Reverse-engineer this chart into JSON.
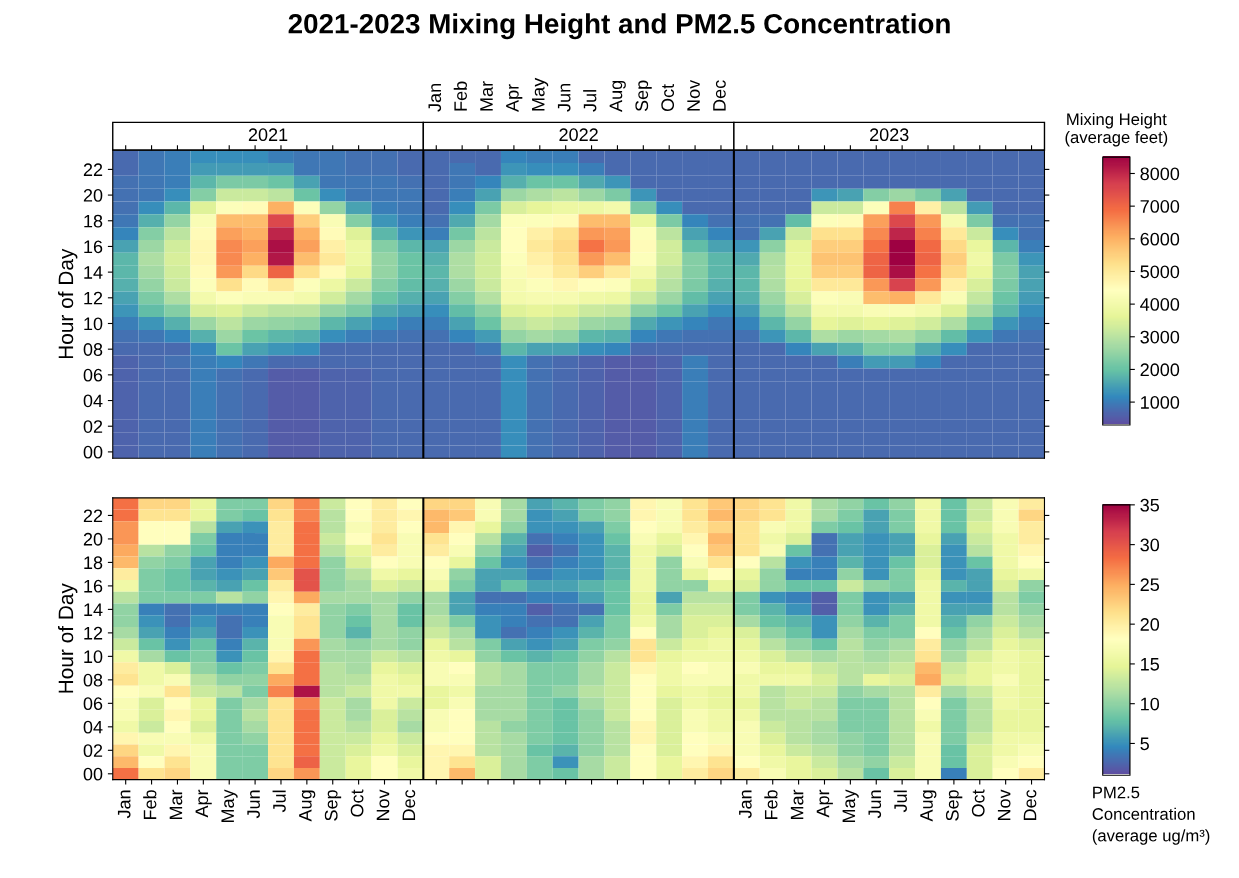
{
  "chart_data": [
    {
      "type": "heatmap",
      "title": "2021-2023 Mixing Height and PM2.5 Concentration",
      "annotations": [
        "2021",
        "2022",
        "2023"
      ],
      "ylabel": "Hour of Day",
      "clim": [
        300,
        8500
      ],
      "cticks": [
        1000,
        2000,
        3000,
        4000,
        5000,
        6000,
        7000,
        8000
      ],
      "clabel": "Mixing Height\n(average feet)",
      "categories": [
        null,
        null,
        null,
        null,
        null,
        null,
        null,
        null,
        null,
        null,
        null,
        null,
        "Jan",
        "Feb",
        "Mar",
        "Apr",
        "May",
        "Jun",
        "Jul",
        "Aug",
        "Sep",
        "Oct",
        "Nov",
        "Dec",
        null,
        null,
        null,
        null,
        null,
        null,
        null,
        null,
        null,
        null,
        null,
        null
      ],
      "y_categories": [
        null,
        "22",
        null,
        "20",
        null,
        "18",
        null,
        "16",
        null,
        "14",
        null,
        "12",
        null,
        "10",
        null,
        "08",
        null,
        "06",
        null,
        "04",
        null,
        "02",
        null,
        "00"
      ],
      "cells": [
        [
          700,
          900,
          1000,
          1200,
          1200,
          1200,
          1000,
          900,
          900,
          800,
          800,
          700,
          700,
          700,
          700,
          1100,
          1000,
          1000,
          700,
          700,
          700,
          700,
          700,
          700,
          700,
          700,
          700,
          700,
          700,
          700,
          700,
          700,
          700,
          700,
          700,
          700
        ],
        [
          700,
          900,
          1000,
          1400,
          1400,
          1400,
          1400,
          900,
          900,
          800,
          800,
          700,
          700,
          900,
          700,
          1300,
          1200,
          1200,
          1000,
          700,
          700,
          700,
          700,
          700,
          700,
          700,
          700,
          700,
          700,
          700,
          700,
          700,
          700,
          700,
          700,
          700
        ],
        [
          800,
          900,
          1000,
          1800,
          2200,
          2200,
          2000,
          1500,
          900,
          900,
          900,
          800,
          700,
          900,
          1100,
          1700,
          2000,
          2000,
          1600,
          1300,
          700,
          700,
          700,
          700,
          700,
          700,
          700,
          700,
          700,
          700,
          700,
          700,
          700,
          700,
          700,
          700
        ],
        [
          800,
          900,
          1200,
          2300,
          3200,
          3200,
          3000,
          2000,
          1200,
          900,
          900,
          900,
          700,
          1000,
          1500,
          2600,
          2800,
          3000,
          2600,
          2200,
          1300,
          700,
          700,
          700,
          700,
          700,
          700,
          1300,
          1500,
          2300,
          2600,
          2200,
          1500,
          700,
          700,
          700
        ],
        [
          800,
          1200,
          1800,
          3500,
          4300,
          4500,
          6000,
          4300,
          2500,
          1500,
          1000,
          900,
          700,
          1200,
          2200,
          3400,
          3600,
          3800,
          3800,
          4000,
          2200,
          1200,
          700,
          700,
          700,
          700,
          700,
          3200,
          3200,
          4300,
          6600,
          4800,
          3000,
          1400,
          700,
          700
        ],
        [
          900,
          1700,
          2500,
          4200,
          5800,
          5800,
          7500,
          5500,
          4200,
          2300,
          1300,
          1000,
          800,
          1600,
          2700,
          4300,
          4300,
          4500,
          5800,
          5800,
          3700,
          2200,
          1100,
          800,
          800,
          800,
          1900,
          4300,
          4500,
          6200,
          7500,
          6300,
          4100,
          2200,
          800,
          800
        ],
        [
          1100,
          2300,
          3000,
          4500,
          6200,
          6000,
          8000,
          6000,
          4500,
          3500,
          1800,
          1300,
          1000,
          2100,
          3000,
          4400,
          4800,
          5200,
          6300,
          6200,
          4300,
          3000,
          1500,
          1100,
          800,
          1500,
          3200,
          5200,
          5200,
          6500,
          8000,
          6600,
          5000,
          3200,
          1200,
          800
        ],
        [
          1500,
          2600,
          3300,
          4600,
          6500,
          6200,
          8300,
          6200,
          4800,
          3800,
          2300,
          1800,
          1500,
          2600,
          3200,
          4400,
          5000,
          5300,
          6800,
          6300,
          4500,
          3300,
          1900,
          1500,
          1300,
          2400,
          3600,
          5500,
          5500,
          6800,
          8500,
          6900,
          5300,
          3700,
          1800,
          1000
        ],
        [
          1800,
          2800,
          3400,
          4600,
          6500,
          6000,
          8200,
          5800,
          5000,
          3800,
          2500,
          2000,
          1700,
          2800,
          3300,
          4300,
          4800,
          5200,
          6300,
          5800,
          4300,
          3300,
          2300,
          1800,
          1600,
          2800,
          3700,
          5700,
          5700,
          7000,
          8500,
          7000,
          5500,
          3900,
          2200,
          1300
        ],
        [
          1800,
          2700,
          3300,
          4500,
          6300,
          5300,
          7000,
          5200,
          4500,
          3600,
          2500,
          2000,
          1800,
          2800,
          3300,
          4200,
          4600,
          5000,
          5500,
          5000,
          4000,
          3100,
          2300,
          1800,
          1800,
          2900,
          3700,
          5500,
          5500,
          7000,
          8300,
          6800,
          5300,
          3700,
          2300,
          1500
        ],
        [
          1700,
          2500,
          3200,
          4300,
          5200,
          4500,
          5000,
          4300,
          3800,
          3200,
          2300,
          1900,
          1700,
          2600,
          3200,
          4100,
          4300,
          4600,
          4400,
          4300,
          3600,
          2900,
          2200,
          1700,
          1800,
          2800,
          3600,
          5000,
          5000,
          6300,
          7600,
          6300,
          4800,
          3400,
          2200,
          1500
        ],
        [
          1500,
          2200,
          2800,
          4000,
          4300,
          4200,
          4200,
          4000,
          3300,
          2700,
          2000,
          1700,
          1500,
          2300,
          2900,
          4000,
          4100,
          4100,
          3900,
          3800,
          3200,
          2600,
          1900,
          1500,
          1700,
          2600,
          3400,
          4300,
          4200,
          5800,
          6000,
          5000,
          4200,
          3100,
          2000,
          1400
        ],
        [
          1300,
          1900,
          2300,
          3400,
          3500,
          3200,
          3000,
          3000,
          2500,
          2200,
          1600,
          1400,
          1200,
          1900,
          2400,
          3500,
          3600,
          3500,
          3200,
          3100,
          2400,
          2000,
          1500,
          1200,
          1400,
          2300,
          3000,
          4000,
          4000,
          4200,
          4200,
          4000,
          3500,
          2700,
          1800,
          1200
        ],
        [
          1000,
          1300,
          1700,
          2600,
          3000,
          2600,
          2500,
          2400,
          1800,
          1500,
          1200,
          1000,
          1000,
          1500,
          2000,
          3000,
          3200,
          3000,
          2600,
          2500,
          1600,
          1300,
          1100,
          900,
          1100,
          1800,
          2500,
          3600,
          3500,
          3600,
          3500,
          3300,
          2800,
          2000,
          1300,
          1000
        ],
        [
          800,
          900,
          1100,
          1700,
          2600,
          2000,
          1800,
          1700,
          1200,
          1000,
          900,
          800,
          800,
          1100,
          1400,
          2500,
          2700,
          2500,
          1800,
          1700,
          1100,
          900,
          800,
          800,
          800,
          1300,
          1800,
          2800,
          2600,
          2700,
          2800,
          2500,
          1900,
          1300,
          900,
          800
        ],
        [
          700,
          700,
          700,
          1100,
          2000,
          1500,
          1300,
          1200,
          700,
          700,
          700,
          700,
          700,
          700,
          900,
          1800,
          1500,
          1500,
          1200,
          1100,
          700,
          700,
          700,
          700,
          700,
          700,
          1100,
          1500,
          1700,
          2200,
          2200,
          1600,
          1200,
          700,
          700,
          700
        ],
        [
          600,
          700,
          800,
          1000,
          1100,
          900,
          700,
          700,
          700,
          700,
          700,
          700,
          700,
          700,
          700,
          1200,
          800,
          700,
          600,
          500,
          500,
          600,
          1000,
          700,
          700,
          700,
          700,
          700,
          1000,
          1400,
          1400,
          1100,
          700,
          700,
          700,
          700
        ],
        [
          600,
          700,
          700,
          1000,
          800,
          700,
          500,
          500,
          600,
          600,
          700,
          700,
          700,
          700,
          700,
          1200,
          800,
          700,
          600,
          500,
          500,
          600,
          1000,
          700,
          700,
          700,
          700,
          700,
          700,
          700,
          700,
          700,
          700,
          700,
          700,
          700
        ],
        [
          600,
          700,
          700,
          1000,
          800,
          700,
          500,
          500,
          600,
          600,
          700,
          700,
          700,
          700,
          700,
          1200,
          800,
          700,
          600,
          500,
          500,
          600,
          1000,
          700,
          700,
          700,
          700,
          700,
          700,
          700,
          700,
          700,
          700,
          700,
          700,
          700
        ],
        [
          600,
          700,
          700,
          1000,
          800,
          700,
          500,
          500,
          600,
          600,
          700,
          700,
          700,
          700,
          700,
          1200,
          800,
          700,
          600,
          500,
          500,
          600,
          1000,
          700,
          700,
          700,
          700,
          700,
          700,
          700,
          700,
          700,
          700,
          700,
          700,
          700
        ],
        [
          600,
          700,
          700,
          1000,
          800,
          700,
          500,
          500,
          600,
          600,
          700,
          700,
          700,
          700,
          700,
          1200,
          800,
          700,
          600,
          500,
          500,
          600,
          1000,
          700,
          700,
          700,
          700,
          700,
          700,
          700,
          700,
          700,
          700,
          700,
          700,
          700
        ],
        [
          600,
          700,
          700,
          1000,
          800,
          700,
          500,
          500,
          600,
          600,
          700,
          700,
          700,
          700,
          700,
          1200,
          800,
          700,
          600,
          500,
          500,
          600,
          1000,
          700,
          700,
          700,
          700,
          700,
          700,
          700,
          700,
          700,
          700,
          700,
          700,
          700
        ],
        [
          600,
          700,
          700,
          1000,
          800,
          700,
          500,
          500,
          600,
          600,
          700,
          700,
          700,
          700,
          700,
          1200,
          800,
          700,
          600,
          500,
          500,
          600,
          1000,
          700,
          700,
          700,
          700,
          700,
          700,
          700,
          700,
          700,
          700,
          700,
          700,
          700
        ],
        [
          600,
          700,
          700,
          1000,
          800,
          700,
          500,
          500,
          600,
          600,
          700,
          700,
          700,
          700,
          700,
          1200,
          800,
          700,
          600,
          500,
          500,
          600,
          1000,
          700,
          700,
          700,
          700,
          700,
          700,
          700,
          700,
          700,
          700,
          700,
          700,
          700
        ]
      ]
    },
    {
      "type": "heatmap",
      "ylabel": "Hour of Day",
      "clim": [
        1,
        35
      ],
      "cticks": [
        5,
        10,
        15,
        20,
        25,
        30,
        35
      ],
      "clabel": "PM2.5\nConcentration\n(average ug/m³)",
      "categories": [
        "Jan",
        "Feb",
        "Mar",
        "Apr",
        "May",
        "Jun",
        "Jul",
        "Aug",
        "Sep",
        "Oct",
        "Nov",
        "Dec",
        null,
        null,
        null,
        null,
        null,
        null,
        null,
        null,
        null,
        null,
        null,
        null,
        "Jan",
        "Feb",
        "Mar",
        "Apr",
        "May",
        "Jun",
        "Jul",
        "Aug",
        "Sep",
        "Oct",
        "Nov",
        "Dec"
      ],
      "y_categories": [
        null,
        "22",
        null,
        "20",
        null,
        "18",
        null,
        "16",
        null,
        "14",
        null,
        "12",
        null,
        "10",
        null,
        "08",
        null,
        "06",
        null,
        "04",
        null,
        "02",
        null,
        "00"
      ],
      "cells": [
        [
          28,
          22,
          22,
          15,
          9,
          9,
          22,
          27,
          13,
          18,
          20,
          18,
          22,
          22,
          17,
          11,
          6,
          7,
          9,
          10,
          19,
          17,
          21,
          23,
          22,
          21,
          16,
          11,
          10,
          8,
          10,
          16,
          8,
          13,
          17,
          20
        ],
        [
          28,
          21,
          21,
          15,
          9,
          8,
          21,
          27,
          12,
          18,
          20,
          19,
          24,
          23,
          17,
          11,
          5,
          6,
          9,
          10,
          19,
          17,
          21,
          24,
          22,
          21,
          16,
          11,
          9,
          6,
          9,
          16,
          8,
          13,
          17,
          22
        ],
        [
          26,
          18,
          18,
          12,
          6,
          5,
          20,
          28,
          12,
          17,
          20,
          18,
          24,
          19,
          15,
          10,
          5,
          5,
          6,
          9,
          18,
          17,
          20,
          22,
          21,
          17,
          16,
          9,
          8,
          6,
          9,
          16,
          8,
          14,
          17,
          20
        ],
        [
          26,
          18,
          18,
          9,
          4,
          4,
          20,
          28,
          13,
          18,
          21,
          17,
          21,
          18,
          12,
          7,
          3,
          4,
          5,
          8,
          17,
          15,
          19,
          24,
          21,
          16,
          14,
          3,
          6,
          5,
          6,
          15,
          6,
          13,
          16,
          20
        ],
        [
          25,
          12,
          10,
          8,
          4,
          4,
          20,
          28,
          12,
          15,
          20,
          17,
          20,
          17,
          10,
          6,
          2,
          3,
          5,
          7,
          16,
          14,
          18,
          23,
          21,
          17,
          8,
          3,
          6,
          5,
          6,
          14,
          5,
          12,
          16,
          19
        ],
        [
          24,
          10,
          9,
          6,
          4,
          5,
          25,
          28,
          10,
          14,
          18,
          17,
          18,
          15,
          8,
          5,
          3,
          4,
          5,
          7,
          16,
          10,
          17,
          21,
          18,
          12,
          5,
          4,
          7,
          5,
          8,
          14,
          5,
          8,
          16,
          18
        ],
        [
          20,
          9,
          8,
          6,
          5,
          6,
          23,
          30,
          10,
          12,
          16,
          15,
          17,
          10,
          6,
          6,
          4,
          5,
          5,
          7,
          16,
          10,
          15,
          18,
          15,
          10,
          4,
          4,
          10,
          5,
          9,
          15,
          5,
          6,
          15,
          16
        ],
        [
          16,
          9,
          8,
          7,
          6,
          8,
          20,
          30,
          10,
          11,
          14,
          13,
          16,
          9,
          6,
          8,
          6,
          6,
          7,
          8,
          16,
          10,
          10,
          15,
          14,
          10,
          8,
          8,
          13,
          10,
          9,
          16,
          7,
          6,
          14,
          10
        ],
        [
          12,
          9,
          9,
          9,
          12,
          10,
          19,
          25,
          11,
          11,
          11,
          10,
          11,
          6,
          3,
          3,
          4,
          4,
          6,
          8,
          15,
          6,
          12,
          12,
          9,
          5,
          4,
          2,
          9,
          5,
          6,
          16,
          5,
          5,
          12,
          9
        ],
        [
          10,
          4,
          3,
          4,
          4,
          4,
          18,
          20,
          10,
          9,
          11,
          8,
          11,
          6,
          4,
          4,
          2,
          3,
          3,
          8,
          15,
          9,
          13,
          13,
          9,
          7,
          5,
          2,
          9,
          5,
          7,
          16,
          6,
          6,
          12,
          10
        ],
        [
          10,
          5,
          3,
          5,
          3,
          4,
          17,
          21,
          10,
          8,
          11,
          8,
          12,
          9,
          5,
          4,
          3,
          3,
          6,
          9,
          16,
          11,
          14,
          14,
          11,
          8,
          7,
          5,
          10,
          7,
          9,
          16,
          7,
          10,
          13,
          11
        ],
        [
          11,
          6,
          4,
          6,
          3,
          5,
          17,
          21,
          10,
          7,
          11,
          10,
          13,
          11,
          5,
          3,
          4,
          5,
          7,
          9,
          18,
          11,
          14,
          15,
          14,
          10,
          8,
          5,
          11,
          9,
          9,
          18,
          8,
          11,
          14,
          12
        ],
        [
          13,
          8,
          5,
          8,
          4,
          7,
          17,
          26,
          11,
          10,
          11,
          10,
          15,
          12,
          9,
          6,
          5,
          6,
          9,
          10,
          21,
          13,
          15,
          16,
          15,
          12,
          10,
          8,
          12,
          10,
          11,
          20,
          10,
          12,
          15,
          14
        ],
        [
          16,
          11,
          8,
          9,
          5,
          8,
          19,
          28,
          11,
          11,
          13,
          12,
          16,
          15,
          10,
          8,
          7,
          8,
          10,
          12,
          21,
          15,
          16,
          16,
          16,
          14,
          12,
          11,
          12,
          11,
          12,
          21,
          11,
          14,
          16,
          15
        ],
        [
          20,
          16,
          14,
          10,
          8,
          9,
          21,
          28,
          12,
          11,
          15,
          14,
          17,
          18,
          12,
          11,
          9,
          9,
          11,
          13,
          19,
          16,
          18,
          17,
          17,
          15,
          15,
          13,
          12,
          12,
          13,
          24,
          13,
          15,
          16,
          15
        ],
        [
          21,
          16,
          17,
          12,
          10,
          10,
          25,
          28,
          12,
          12,
          16,
          15,
          17,
          17,
          12,
          11,
          9,
          9,
          11,
          13,
          18,
          16,
          17,
          17,
          16,
          16,
          16,
          14,
          12,
          15,
          14,
          25,
          14,
          15,
          17,
          15
        ],
        [
          18,
          17,
          21,
          13,
          12,
          9,
          27,
          34,
          12,
          13,
          16,
          16,
          15,
          16,
          11,
          11,
          9,
          10,
          12,
          13,
          18,
          15,
          16,
          15,
          16,
          12,
          13,
          13,
          10,
          11,
          12,
          20,
          11,
          13,
          16,
          15
        ],
        [
          17,
          14,
          18,
          15,
          9,
          11,
          21,
          27,
          13,
          11,
          16,
          13,
          15,
          17,
          11,
          11,
          9,
          8,
          11,
          13,
          18,
          14,
          16,
          15,
          15,
          12,
          13,
          12,
          9,
          9,
          12,
          18,
          9,
          12,
          16,
          15
        ],
        [
          17,
          14,
          19,
          15,
          9,
          12,
          21,
          28,
          13,
          11,
          14,
          12,
          17,
          18,
          11,
          11,
          9,
          8,
          10,
          13,
          18,
          14,
          17,
          16,
          16,
          12,
          12,
          12,
          9,
          9,
          12,
          17,
          9,
          12,
          15,
          15
        ],
        [
          16,
          13,
          18,
          14,
          9,
          11,
          21,
          28,
          13,
          12,
          14,
          11,
          17,
          18,
          12,
          10,
          9,
          8,
          10,
          12,
          19,
          14,
          17,
          16,
          17,
          13,
          12,
          11,
          9,
          9,
          12,
          16,
          9,
          12,
          15,
          15
        ],
        [
          19,
          17,
          17,
          16,
          9,
          10,
          21,
          28,
          13,
          13,
          15,
          13,
          18,
          18,
          12,
          11,
          9,
          8,
          10,
          12,
          19,
          14,
          18,
          17,
          17,
          14,
          12,
          11,
          10,
          9,
          12,
          17,
          9,
          13,
          16,
          16
        ],
        [
          22,
          16,
          19,
          17,
          9,
          9,
          21,
          28,
          13,
          14,
          16,
          14,
          19,
          19,
          12,
          11,
          8,
          7,
          10,
          12,
          18,
          14,
          18,
          19,
          17,
          15,
          13,
          12,
          10,
          9,
          12,
          17,
          8,
          14,
          16,
          17
        ],
        [
          24,
          18,
          21,
          17,
          9,
          9,
          21,
          29,
          13,
          15,
          18,
          15,
          19,
          21,
          14,
          11,
          9,
          5,
          11,
          13,
          18,
          15,
          19,
          21,
          18,
          16,
          15,
          13,
          11,
          10,
          13,
          17,
          8,
          14,
          17,
          18
        ],
        [
          28,
          21,
          22,
          17,
          9,
          9,
          22,
          26,
          13,
          15,
          18,
          16,
          19,
          24,
          14,
          11,
          9,
          8,
          11,
          13,
          18,
          15,
          20,
          22,
          20,
          17,
          15,
          14,
          12,
          8,
          14,
          17,
          4,
          14,
          18,
          20
        ]
      ]
    }
  ]
}
